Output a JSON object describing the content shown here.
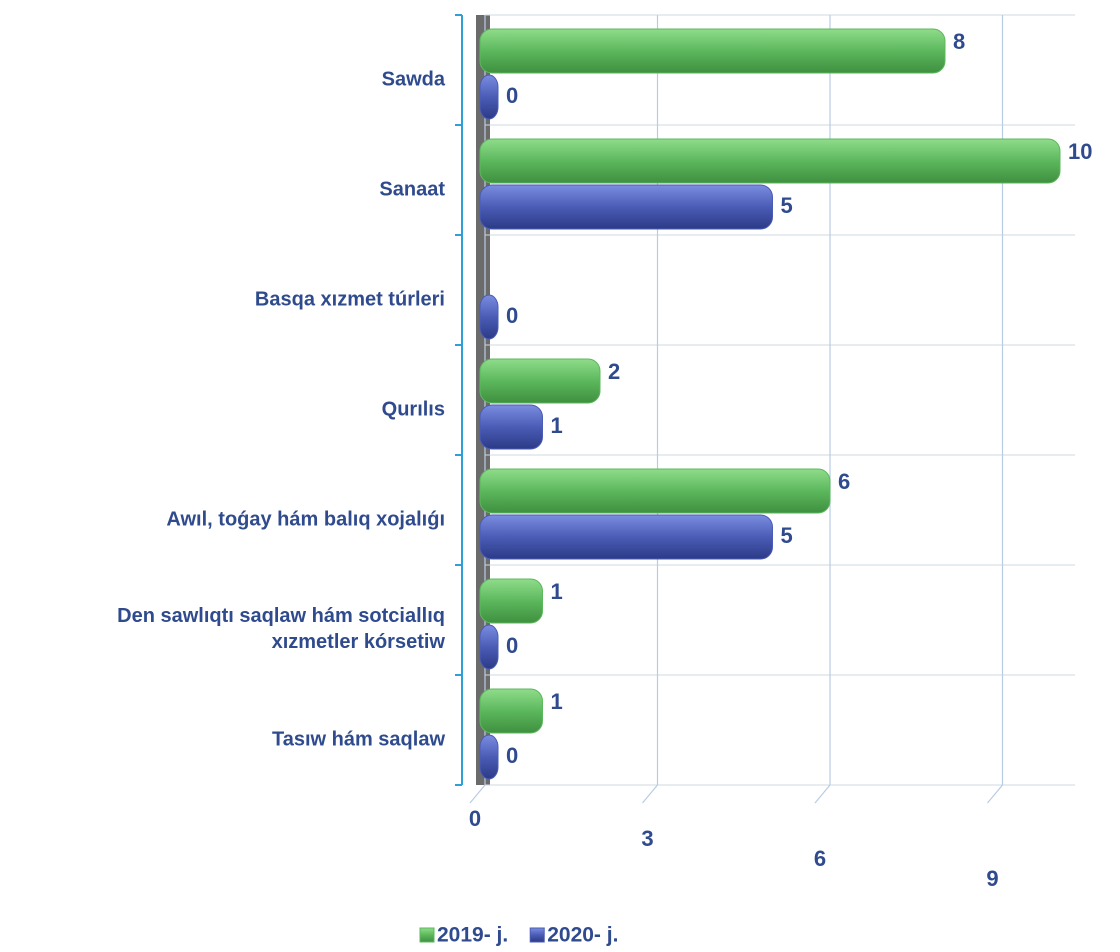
{
  "chart_data": {
    "type": "bar",
    "orientation": "horizontal",
    "categories": [
      "Sawda",
      "Sanaat",
      "Basqa xızmet túrleri",
      "Qurılıs",
      "Awıl, toǵay hám balıq xojalıǵı",
      "Den sawlıqtı saqlaw hám sotciallıq\nxızmetler kórsetiw",
      "Tasıw hám saqlaw"
    ],
    "series": [
      {
        "name": "2019- j.",
        "color": "#5cb85c",
        "values": [
          8,
          10,
          null,
          2,
          6,
          1,
          1
        ]
      },
      {
        "name": "2020- j.",
        "color": "#4a5cb5",
        "values": [
          0,
          5,
          0,
          1,
          5,
          0,
          0
        ]
      }
    ],
    "xlim": [
      0,
      10
    ],
    "xticks": [
      0,
      3,
      6,
      9
    ],
    "grid": true,
    "legend": "bottom"
  }
}
